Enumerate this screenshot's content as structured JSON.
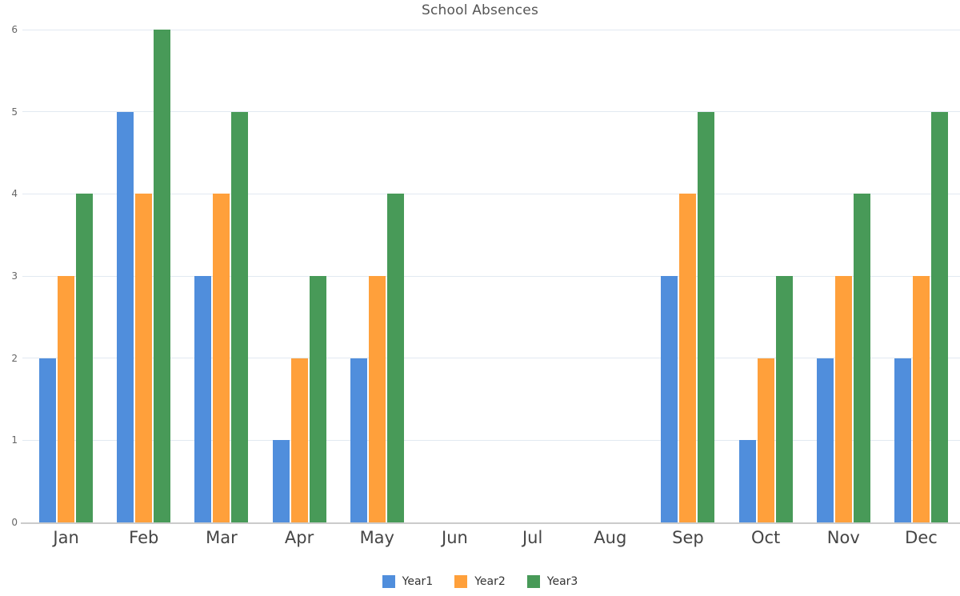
{
  "title": "School Absences",
  "chart_data": {
    "type": "bar",
    "title": "School Absences",
    "categories": [
      "Jan",
      "Feb",
      "Mar",
      "Apr",
      "May",
      "Jun",
      "Jul",
      "Aug",
      "Sep",
      "Oct",
      "Nov",
      "Dec"
    ],
    "series": [
      {
        "name": "Year1",
        "color": "#508EDC",
        "values": [
          2,
          5,
          3,
          1,
          2,
          0,
          0,
          0,
          3,
          1,
          2,
          2
        ]
      },
      {
        "name": "Year2",
        "color": "#FFA03B",
        "values": [
          3,
          4,
          4,
          2,
          3,
          0,
          0,
          0,
          4,
          2,
          3,
          3
        ]
      },
      {
        "name": "Year3",
        "color": "#489A58",
        "values": [
          4,
          6,
          5,
          3,
          4,
          0,
          0,
          0,
          5,
          3,
          4,
          5
        ]
      }
    ],
    "xlabel": "",
    "ylabel": "",
    "ylim": [
      0,
      6
    ],
    "y_ticks": [
      0,
      1,
      2,
      3,
      4,
      5,
      6
    ],
    "grid": "horizontal-on",
    "legend_position": "bottom",
    "colors": {
      "gridline": "#e2e9f1",
      "axis_line": "#cbcbcb",
      "title_text": "#555555",
      "y_tick_text": "#666666",
      "x_tick_text": "#454545",
      "legend_text": "#333333",
      "background": "#ffffff"
    }
  }
}
